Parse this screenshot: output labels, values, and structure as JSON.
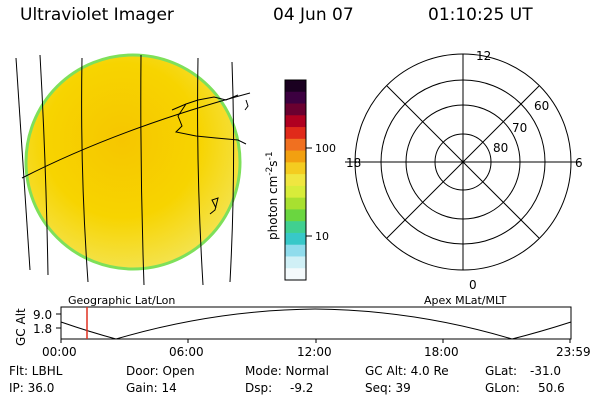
{
  "header": {
    "title": "Ultraviolet Imager",
    "date": "04 Jun 07",
    "time": "01:10:25 UT"
  },
  "colorbar": {
    "unit_label": "photon cm",
    "unit_sup1": "-2",
    "unit_mid": "s",
    "unit_sup2": "-1",
    "tick_high": "100",
    "tick_low": "10",
    "colors": [
      "#1a0020",
      "#3c0040",
      "#6a0030",
      "#b00020",
      "#e02a1a",
      "#f07020",
      "#f2a010",
      "#f4cc20",
      "#f0e640",
      "#d8ec3a",
      "#a8e030",
      "#6ad640",
      "#40d090",
      "#38c8c8",
      "#90dcec",
      "#d0f0f6",
      "#f4fafc"
    ]
  },
  "left_panel": {
    "caption": "Geographic Lat/Lon",
    "disk_fill": "#f6d400",
    "disk_edge": "#7ee05a"
  },
  "right_panel": {
    "caption": "Apex MLat/MLT",
    "mlt_labels": {
      "top": "12",
      "right": "6",
      "bottom": "0",
      "left": "18"
    },
    "mlat_labels": [
      "60",
      "70",
      "80"
    ],
    "blob_fill": "#f2e030",
    "blob_edge": "#80d840"
  },
  "altitude_plot": {
    "axis_label": "GC Alt",
    "y_ticks": [
      "9.0",
      "1.8"
    ],
    "x_ticks": [
      "00:00",
      "06:00",
      "12:00",
      "18:00",
      "23:59"
    ],
    "marker_color": "#e03020"
  },
  "info": {
    "flt": "Flt: LBHL",
    "ip": "IP: 36.0",
    "door": "Door: Open",
    "gain": "Gain: 14",
    "mode": "Mode: Normal",
    "dsp_label": "Dsp:",
    "dsp_value": "-9.2",
    "gc_alt": "GC Alt: 4.0 Re",
    "seq": "Seq: 39",
    "glat_label": "GLat:",
    "glat_value": "-31.0",
    "glon_label": "GLon:",
    "glon_value": "50.6"
  }
}
